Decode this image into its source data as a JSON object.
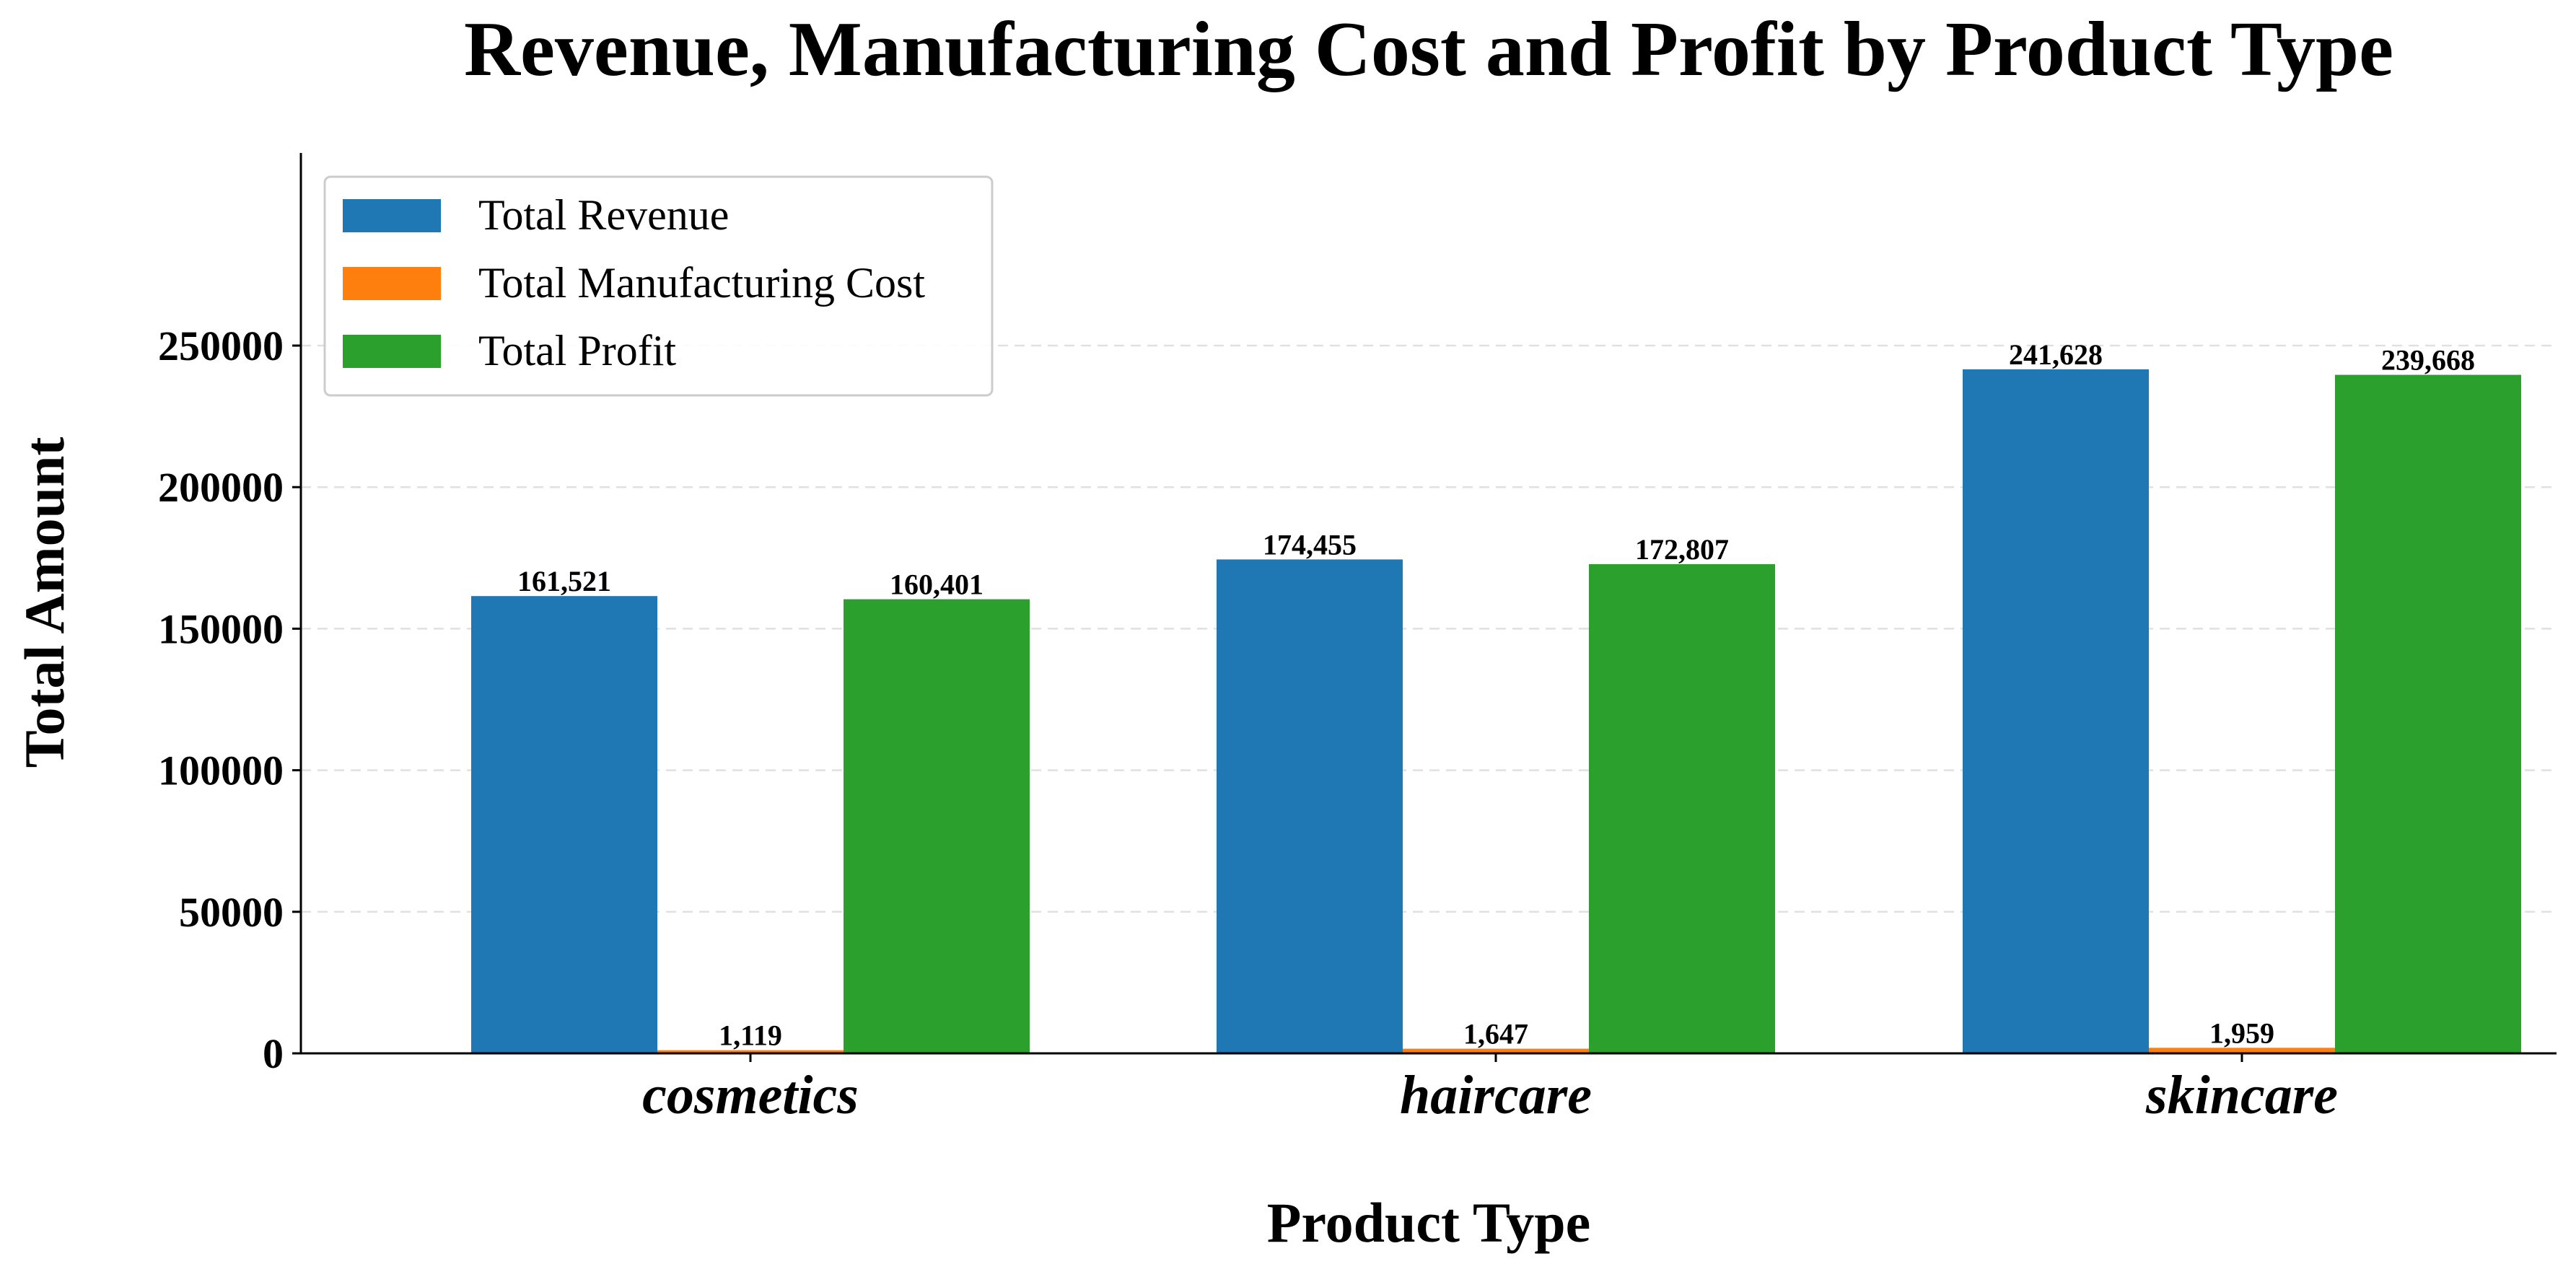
{
  "chart_data": {
    "type": "bar",
    "title": "Revenue, Manufacturing Cost and Profit by Product Type",
    "xlabel": "Product Type",
    "ylabel": "Total Amount",
    "categories": [
      "cosmetics",
      "haircare",
      "skincare"
    ],
    "series": [
      {
        "name": "Total Revenue",
        "color": "#1f77b4",
        "values": [
          161521,
          174455,
          241628
        ],
        "labels": [
          "161,521",
          "174,455",
          "241,628"
        ]
      },
      {
        "name": "Total Manufacturing Cost",
        "color": "#ff7f0e",
        "values": [
          1119,
          1647,
          1959
        ],
        "labels": [
          "1,119",
          "1,647",
          "1,959"
        ]
      },
      {
        "name": "Total Profit",
        "color": "#2ca02c",
        "values": [
          160401,
          172807,
          239668
        ],
        "labels": [
          "160,401",
          "172,807",
          "239,668"
        ]
      }
    ],
    "ylim": [
      0,
      253000
    ],
    "yticks": [
      0,
      50000,
      100000,
      150000,
      200000,
      250000
    ],
    "ytick_labels": [
      "0",
      "50000",
      "100000",
      "150000",
      "200000",
      "250000"
    ],
    "grid": "horizontal dashed",
    "legend_position": "top-left"
  }
}
